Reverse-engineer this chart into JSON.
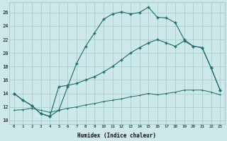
{
  "xlabel": "Humidex (Indice chaleur)",
  "x_ticks": [
    0,
    1,
    2,
    3,
    4,
    5,
    6,
    7,
    8,
    9,
    10,
    11,
    12,
    13,
    14,
    15,
    16,
    17,
    18,
    19,
    20,
    21,
    22,
    23
  ],
  "ylim": [
    9.5,
    27.5
  ],
  "xlim": [
    -0.5,
    23.5
  ],
  "yticks": [
    10,
    12,
    14,
    16,
    18,
    20,
    22,
    24,
    26
  ],
  "bg_color": "#cce8e8",
  "grid_color": "#aacece",
  "line_color": "#1a6b6b",
  "curve1_x": [
    0,
    1,
    2,
    3,
    4,
    5,
    6,
    7,
    8,
    9,
    10,
    11,
    12,
    13,
    14,
    15,
    16,
    17,
    18,
    19,
    20,
    21,
    22,
    23
  ],
  "curve1_y": [
    14.0,
    13.0,
    12.2,
    11.0,
    10.6,
    11.5,
    15.0,
    18.5,
    21.0,
    23.0,
    25.0,
    25.8,
    26.1,
    25.8,
    26.0,
    26.8,
    25.3,
    25.2,
    24.5,
    22.0,
    21.0,
    20.8,
    17.8,
    14.5
  ],
  "curve2_x": [
    0,
    1,
    2,
    3,
    4,
    5,
    6,
    7,
    8,
    9,
    10,
    11,
    12,
    13,
    14,
    15,
    16,
    17,
    18,
    19,
    20,
    21,
    22,
    23
  ],
  "curve2_y": [
    14.0,
    13.0,
    12.2,
    11.0,
    10.6,
    15.0,
    15.2,
    15.5,
    16.0,
    16.5,
    17.2,
    18.0,
    19.0,
    20.0,
    20.8,
    21.5,
    22.0,
    21.5,
    21.0,
    21.8,
    21.0,
    20.8,
    17.8,
    14.5
  ],
  "curve3_x": [
    0,
    1,
    2,
    3,
    4,
    5,
    6,
    7,
    8,
    9,
    10,
    11,
    12,
    13,
    14,
    15,
    16,
    17,
    18,
    19,
    20,
    21,
    22,
    23
  ],
  "curve3_y": [
    11.5,
    11.6,
    11.8,
    11.5,
    11.2,
    11.5,
    11.8,
    12.0,
    12.3,
    12.5,
    12.8,
    13.0,
    13.2,
    13.5,
    13.7,
    14.0,
    13.8,
    14.0,
    14.2,
    14.5,
    14.5,
    14.5,
    14.2,
    13.8
  ]
}
